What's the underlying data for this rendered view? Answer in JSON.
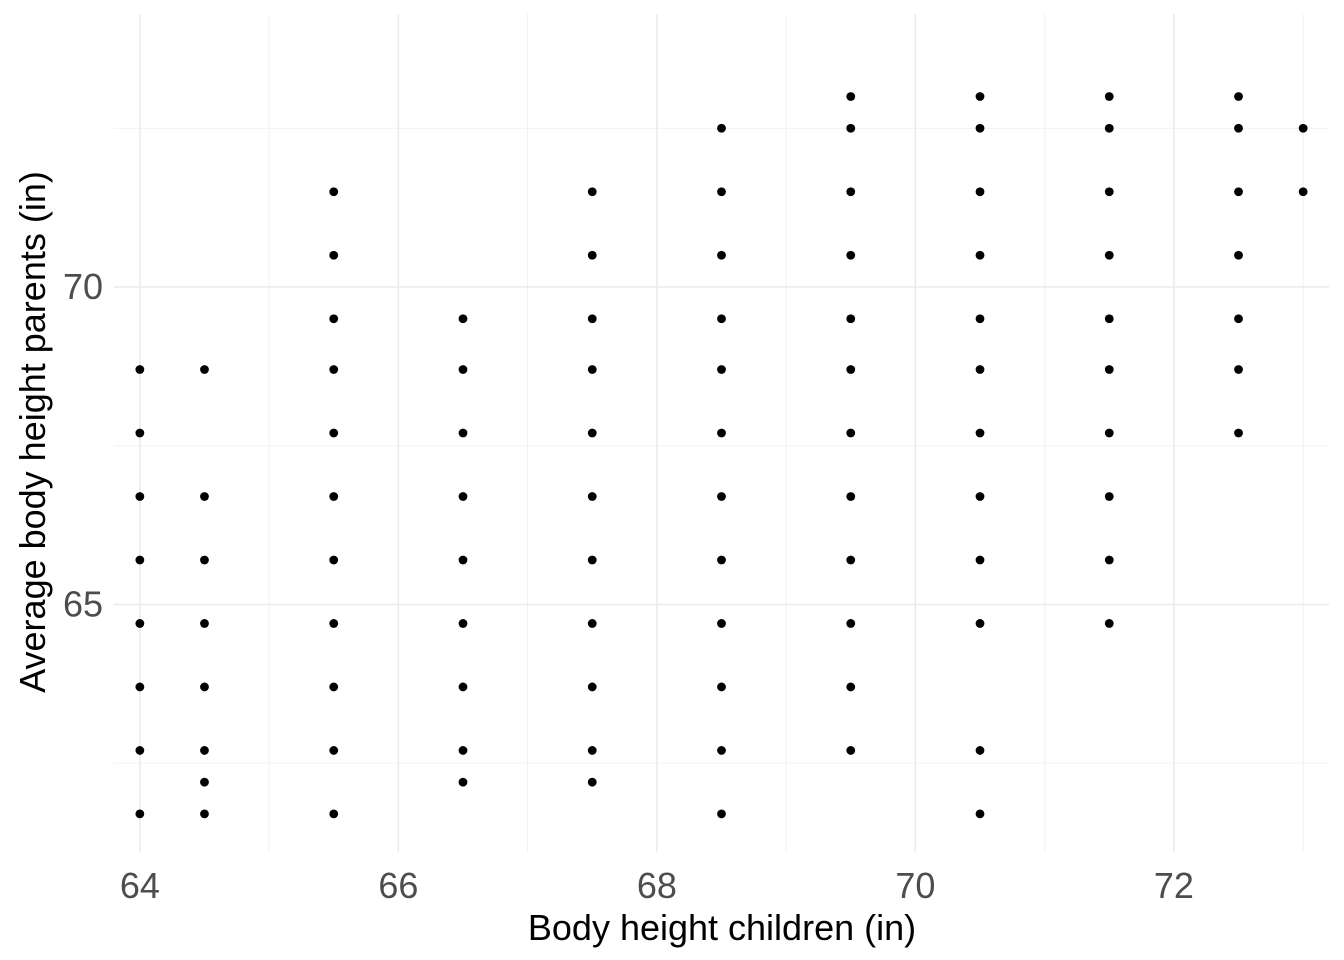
{
  "chart_data": {
    "type": "scatter",
    "xlabel": "Body height children (in)",
    "ylabel": "Average body height parents (in)",
    "xlim": [
      63.8,
      73.2
    ],
    "ylim": [
      61.1,
      74.3
    ],
    "x_ticks": [
      "64",
      "66",
      "68",
      "70",
      "72"
    ],
    "y_ticks": [
      "65",
      "70"
    ],
    "grid": true,
    "point_color": "#000000",
    "points": [
      {
        "x": 64.0,
        "y": 61.7
      },
      {
        "x": 64.0,
        "y": 62.7
      },
      {
        "x": 64.0,
        "y": 63.7
      },
      {
        "x": 64.0,
        "y": 64.7
      },
      {
        "x": 64.0,
        "y": 65.7
      },
      {
        "x": 64.0,
        "y": 66.7
      },
      {
        "x": 64.0,
        "y": 67.7
      },
      {
        "x": 64.0,
        "y": 68.7
      },
      {
        "x": 64.5,
        "y": 61.7
      },
      {
        "x": 64.5,
        "y": 62.2
      },
      {
        "x": 64.5,
        "y": 62.7
      },
      {
        "x": 64.5,
        "y": 63.7
      },
      {
        "x": 64.5,
        "y": 64.7
      },
      {
        "x": 64.5,
        "y": 65.7
      },
      {
        "x": 64.5,
        "y": 66.7
      },
      {
        "x": 64.5,
        "y": 68.7
      },
      {
        "x": 65.5,
        "y": 61.7
      },
      {
        "x": 65.5,
        "y": 62.7
      },
      {
        "x": 65.5,
        "y": 63.7
      },
      {
        "x": 65.5,
        "y": 64.7
      },
      {
        "x": 65.5,
        "y": 65.7
      },
      {
        "x": 65.5,
        "y": 66.7
      },
      {
        "x": 65.5,
        "y": 67.7
      },
      {
        "x": 65.5,
        "y": 68.7
      },
      {
        "x": 65.5,
        "y": 69.5
      },
      {
        "x": 65.5,
        "y": 70.5
      },
      {
        "x": 65.5,
        "y": 71.5
      },
      {
        "x": 66.5,
        "y": 62.2
      },
      {
        "x": 66.5,
        "y": 62.7
      },
      {
        "x": 66.5,
        "y": 63.7
      },
      {
        "x": 66.5,
        "y": 64.7
      },
      {
        "x": 66.5,
        "y": 65.7
      },
      {
        "x": 66.5,
        "y": 66.7
      },
      {
        "x": 66.5,
        "y": 67.7
      },
      {
        "x": 66.5,
        "y": 68.7
      },
      {
        "x": 66.5,
        "y": 69.5
      },
      {
        "x": 67.5,
        "y": 62.2
      },
      {
        "x": 67.5,
        "y": 62.7
      },
      {
        "x": 67.5,
        "y": 63.7
      },
      {
        "x": 67.5,
        "y": 64.7
      },
      {
        "x": 67.5,
        "y": 65.7
      },
      {
        "x": 67.5,
        "y": 66.7
      },
      {
        "x": 67.5,
        "y": 67.7
      },
      {
        "x": 67.5,
        "y": 68.7
      },
      {
        "x": 67.5,
        "y": 69.5
      },
      {
        "x": 67.5,
        "y": 70.5
      },
      {
        "x": 67.5,
        "y": 71.5
      },
      {
        "x": 68.5,
        "y": 61.7
      },
      {
        "x": 68.5,
        "y": 62.7
      },
      {
        "x": 68.5,
        "y": 63.7
      },
      {
        "x": 68.5,
        "y": 64.7
      },
      {
        "x": 68.5,
        "y": 65.7
      },
      {
        "x": 68.5,
        "y": 66.7
      },
      {
        "x": 68.5,
        "y": 67.7
      },
      {
        "x": 68.5,
        "y": 68.7
      },
      {
        "x": 68.5,
        "y": 69.5
      },
      {
        "x": 68.5,
        "y": 70.5
      },
      {
        "x": 68.5,
        "y": 71.5
      },
      {
        "x": 68.5,
        "y": 72.5
      },
      {
        "x": 69.5,
        "y": 62.7
      },
      {
        "x": 69.5,
        "y": 63.7
      },
      {
        "x": 69.5,
        "y": 64.7
      },
      {
        "x": 69.5,
        "y": 65.7
      },
      {
        "x": 69.5,
        "y": 66.7
      },
      {
        "x": 69.5,
        "y": 67.7
      },
      {
        "x": 69.5,
        "y": 68.7
      },
      {
        "x": 69.5,
        "y": 69.5
      },
      {
        "x": 69.5,
        "y": 70.5
      },
      {
        "x": 69.5,
        "y": 71.5
      },
      {
        "x": 69.5,
        "y": 72.5
      },
      {
        "x": 69.5,
        "y": 73.0
      },
      {
        "x": 70.5,
        "y": 61.7
      },
      {
        "x": 70.5,
        "y": 62.7
      },
      {
        "x": 70.5,
        "y": 64.7
      },
      {
        "x": 70.5,
        "y": 65.7
      },
      {
        "x": 70.5,
        "y": 66.7
      },
      {
        "x": 70.5,
        "y": 67.7
      },
      {
        "x": 70.5,
        "y": 68.7
      },
      {
        "x": 70.5,
        "y": 69.5
      },
      {
        "x": 70.5,
        "y": 70.5
      },
      {
        "x": 70.5,
        "y": 71.5
      },
      {
        "x": 70.5,
        "y": 72.5
      },
      {
        "x": 70.5,
        "y": 73.0
      },
      {
        "x": 71.5,
        "y": 64.7
      },
      {
        "x": 71.5,
        "y": 65.7
      },
      {
        "x": 71.5,
        "y": 66.7
      },
      {
        "x": 71.5,
        "y": 67.7
      },
      {
        "x": 71.5,
        "y": 68.7
      },
      {
        "x": 71.5,
        "y": 69.5
      },
      {
        "x": 71.5,
        "y": 70.5
      },
      {
        "x": 71.5,
        "y": 71.5
      },
      {
        "x": 71.5,
        "y": 72.5
      },
      {
        "x": 71.5,
        "y": 73.0
      },
      {
        "x": 72.5,
        "y": 67.7
      },
      {
        "x": 72.5,
        "y": 68.7
      },
      {
        "x": 72.5,
        "y": 69.5
      },
      {
        "x": 72.5,
        "y": 70.5
      },
      {
        "x": 72.5,
        "y": 71.5
      },
      {
        "x": 72.5,
        "y": 72.5
      },
      {
        "x": 72.5,
        "y": 73.0
      },
      {
        "x": 73.0,
        "y": 71.5
      },
      {
        "x": 73.0,
        "y": 72.5
      }
    ]
  }
}
